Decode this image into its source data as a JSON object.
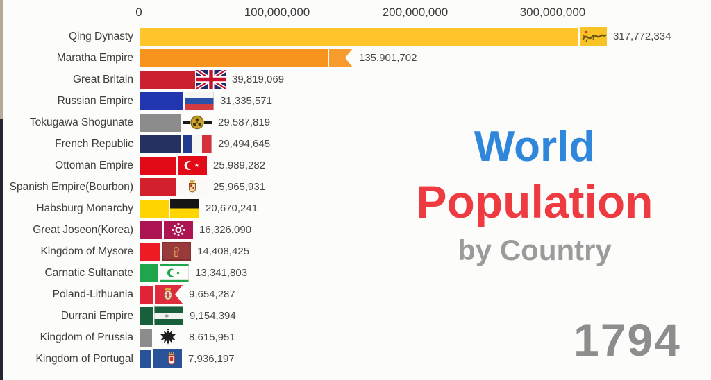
{
  "title": {
    "line1": "World",
    "line2": "Population",
    "line3": "by Country",
    "line1_color": "#2F87DC",
    "line2_color": "#EE3B41",
    "line3_color": "#9B9B9B"
  },
  "year": "1794",
  "axis": {
    "ticks": [
      "0",
      "100,000,000",
      "200,000,000",
      "300,000,000"
    ]
  },
  "chart_data": {
    "type": "bar",
    "orientation": "horizontal",
    "title": "World Population by Country",
    "year": "1794",
    "xlim": [
      0,
      360000000
    ],
    "x_ticks": [
      0,
      100000000,
      200000000,
      300000000
    ],
    "grid": false,
    "rows": [
      {
        "label": "Qing Dynasty",
        "value": 317772334,
        "value_label": "317,772,334",
        "color": "#FFC52B",
        "flag": "qing-dynasty"
      },
      {
        "label": "Maratha Empire",
        "value": 135901702,
        "value_label": "135,901,702",
        "color": "#F7941E",
        "flag": "maratha-empire"
      },
      {
        "label": "Great Britain",
        "value": 39819069,
        "value_label": "39,819,069",
        "color": "#CC1F2F",
        "flag": "great-britain"
      },
      {
        "label": "Russian Empire",
        "value": 31335571,
        "value_label": "31,335,571",
        "color": "#2236B0",
        "flag": "russian-empire"
      },
      {
        "label": "Tokugawa Shogunate",
        "value": 29587819,
        "value_label": "29,587,819",
        "color": "#8C8C8C",
        "flag": "tokugawa-shogunate"
      },
      {
        "label": "French Republic",
        "value": 29494645,
        "value_label": "29,494,645",
        "color": "#243161",
        "flag": "french-republic"
      },
      {
        "label": "Ottoman Empire",
        "value": 25989282,
        "value_label": "25,989,282",
        "color": "#E30A17",
        "flag": "ottoman-empire"
      },
      {
        "label": "Spanish Empire(Bourbon)",
        "value": 25965931,
        "value_label": "25,965,931",
        "color": "#D2202C",
        "flag": "spanish-empire"
      },
      {
        "label": "Habsburg Monarchy",
        "value": 20670241,
        "value_label": "20,670,241",
        "color": "#FFD400",
        "flag": "habsburg-monarchy"
      },
      {
        "label": "Great Joseon(Korea)",
        "value": 16326090,
        "value_label": "16,326,090",
        "color": "#AC1452",
        "flag": "great-joseon"
      },
      {
        "label": "Kingdom of Mysore",
        "value": 14408425,
        "value_label": "14,408,425",
        "color": "#ED1C24",
        "flag": "kingdom-of-mysore"
      },
      {
        "label": "Carnatic Sultanate",
        "value": 13341803,
        "value_label": "13,341,803",
        "color": "#1FA54C",
        "flag": "carnatic-sultanate"
      },
      {
        "label": "Poland-Lithuania",
        "value": 9654287,
        "value_label": "9,654,287",
        "color": "#E02437",
        "flag": "poland-lithuania"
      },
      {
        "label": "Durrani Empire",
        "value": 9154394,
        "value_label": "9,154,394",
        "color": "#17603B",
        "flag": "durrani-empire"
      },
      {
        "label": "Kingdom of Prussia",
        "value": 8615951,
        "value_label": "8,615,951",
        "color": "#8C8C8C",
        "flag": "kingdom-of-prussia"
      },
      {
        "label": "Kingdom of Portugal",
        "value": 7936197,
        "value_label": "7,936,197",
        "color": "#2A5298",
        "flag": "kingdom-of-portugal"
      }
    ]
  }
}
